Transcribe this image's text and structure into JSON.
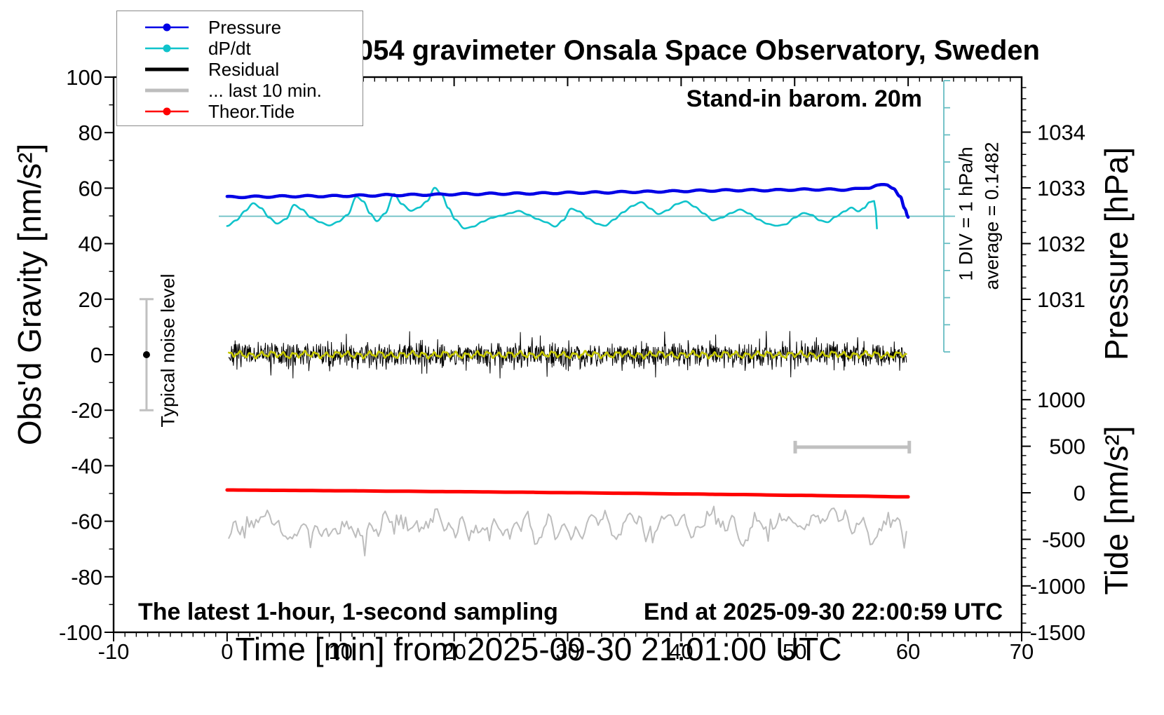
{
  "chart_data": {
    "type": "line",
    "title": "SCG_054 gravimeter Onsala Space Observatory, Sweden",
    "xlabel": "Time [min] from 2025-09-30 21:01:00 UTC",
    "ylabel_left": "Obs'd Gravity [nm/s²]",
    "ylabel_right_top": "Pressure [hPa]",
    "ylabel_right_bottom": "Tide [nm/s²]",
    "axes": {
      "x_minutes": {
        "min": -10,
        "max": 70,
        "major": 10,
        "minor": 1
      },
      "gravity_nm_s2": {
        "min": -100,
        "max": 100,
        "major": 20,
        "minor": 10
      },
      "pressure_hPa": {
        "tick_labels": [
          1031,
          1032,
          1033,
          1034
        ],
        "minor": 0.2
      },
      "tide_nm_s2": {
        "min": -1500,
        "max": 1000,
        "major": 500,
        "minor": 100
      }
    },
    "annotations": {
      "stand_in": "Stand-in barom. 20m",
      "div_note": "1 DIV = 1 hPa/h",
      "average_note": "average = 0.1482",
      "noise_note": "Typical noise level",
      "sampling_note": "The latest 1-hour, 1-second sampling",
      "end_note": "End at 2025-09-30 22:00:59 UTC"
    },
    "legend": {
      "items": [
        {
          "label": "Pressure",
          "color": "#0000e6",
          "width": 2.4,
          "marker": true
        },
        {
          "label": "dP/dt",
          "color": "#10c3cb",
          "width": 2.4,
          "marker": true
        },
        {
          "label": "Residual",
          "color": "#000000",
          "width": 5,
          "marker": false
        },
        {
          "label": "... last 10 min.",
          "color": "#bdbdbd",
          "width": 5,
          "marker": false
        },
        {
          "label": "Theor.Tide",
          "color": "#ff0000",
          "width": 2.4,
          "marker": true
        }
      ]
    },
    "series": {
      "pressure": {
        "name": "Pressure",
        "units": "hPa",
        "color": "#0000e6",
        "stroke": 4.5,
        "wiggle": {
          "period_min": 2.3,
          "amp_hPa": 0.013
        },
        "points": [
          [
            0,
            1032.835
          ],
          [
            3,
            1032.842
          ],
          [
            6,
            1032.85
          ],
          [
            9,
            1032.852
          ],
          [
            12,
            1032.862
          ],
          [
            15,
            1032.872
          ],
          [
            18,
            1032.878
          ],
          [
            21,
            1032.89
          ],
          [
            24,
            1032.895
          ],
          [
            27,
            1032.9
          ],
          [
            30,
            1032.912
          ],
          [
            33,
            1032.918
          ],
          [
            36,
            1032.928
          ],
          [
            39,
            1032.938
          ],
          [
            42,
            1032.95
          ],
          [
            45,
            1032.958
          ],
          [
            48,
            1032.958
          ],
          [
            50,
            1032.968
          ],
          [
            52,
            1032.972
          ],
          [
            54,
            1032.968
          ],
          [
            55.5,
            1032.978
          ],
          [
            56.5,
            1033.005
          ],
          [
            57.3,
            1033.045
          ],
          [
            58.1,
            1033.048
          ],
          [
            58.7,
            1033.0
          ],
          [
            59.3,
            1032.85
          ],
          [
            59.7,
            1032.62
          ],
          [
            60,
            1032.46
          ]
        ]
      },
      "dpdt": {
        "name": "dP/dt",
        "units": "hPa/h",
        "color": "#10c3cb",
        "stroke": 2.6,
        "average_hPa_per_h": 0.1482,
        "div_hPa_per_h": 1,
        "points": [
          [
            0,
            -0.36
          ],
          [
            0.8,
            -0.15
          ],
          [
            1.6,
            0.2
          ],
          [
            2.3,
            0.48
          ],
          [
            3,
            0.3
          ],
          [
            3.7,
            -0.05
          ],
          [
            4.4,
            -0.27
          ],
          [
            5.2,
            -0.1
          ],
          [
            5.9,
            0.42
          ],
          [
            6.6,
            0.25
          ],
          [
            7.4,
            -0.05
          ],
          [
            8.2,
            -0.22
          ],
          [
            9,
            -0.34
          ],
          [
            9.8,
            -0.2
          ],
          [
            10.6,
            0.05
          ],
          [
            11.4,
            0.72
          ],
          [
            12,
            0.55
          ],
          [
            12.6,
            0.1
          ],
          [
            13.2,
            -0.18
          ],
          [
            13.9,
            0.1
          ],
          [
            14.7,
            0.82
          ],
          [
            15.4,
            0.45
          ],
          [
            16.2,
            0.2
          ],
          [
            16.9,
            0.32
          ],
          [
            17.6,
            0.55
          ],
          [
            18.3,
            1.05
          ],
          [
            18.9,
            0.8
          ],
          [
            19.5,
            0.3
          ],
          [
            20.1,
            -0.12
          ],
          [
            20.9,
            -0.45
          ],
          [
            21.7,
            -0.38
          ],
          [
            22.5,
            -0.2
          ],
          [
            23.3,
            -0.06
          ],
          [
            24.1,
            0.02
          ],
          [
            25,
            0.12
          ],
          [
            25.7,
            0.2
          ],
          [
            26.5,
            0.06
          ],
          [
            27.3,
            -0.1
          ],
          [
            28.1,
            -0.22
          ],
          [
            28.9,
            -0.38
          ],
          [
            29.6,
            -0.15
          ],
          [
            30.3,
            0.28
          ],
          [
            31,
            0.18
          ],
          [
            31.8,
            -0.08
          ],
          [
            32.6,
            -0.28
          ],
          [
            33.3,
            -0.35
          ],
          [
            34.1,
            -0.12
          ],
          [
            34.9,
            0.15
          ],
          [
            35.7,
            0.38
          ],
          [
            36.5,
            0.52
          ],
          [
            37.3,
            0.28
          ],
          [
            38,
            0.08
          ],
          [
            38.8,
            0.22
          ],
          [
            39.6,
            0.45
          ],
          [
            40.4,
            0.55
          ],
          [
            41.2,
            0.35
          ],
          [
            42,
            0.1
          ],
          [
            42.8,
            -0.15
          ],
          [
            43.6,
            -0.05
          ],
          [
            44.4,
            0.12
          ],
          [
            45.2,
            0.25
          ],
          [
            46,
            0.1
          ],
          [
            46.8,
            -0.12
          ],
          [
            47.6,
            -0.28
          ],
          [
            48.4,
            -0.35
          ],
          [
            49.2,
            -0.3
          ],
          [
            50,
            -0.05
          ],
          [
            50.8,
            0.12
          ],
          [
            51.5,
            0.05
          ],
          [
            52.2,
            -0.15
          ],
          [
            52.9,
            -0.22
          ],
          [
            53.6,
            -0.02
          ],
          [
            54.4,
            0.18
          ],
          [
            55,
            0.32
          ],
          [
            55.6,
            0.18
          ],
          [
            56.1,
            0.3
          ],
          [
            56.6,
            0.52
          ],
          [
            57,
            0.56
          ],
          [
            57.15,
            0.2
          ],
          [
            57.25,
            -0.45
          ]
        ]
      },
      "residual": {
        "name": "Residual",
        "units": "nm/s²",
        "color": "#000000",
        "stroke": 1,
        "mean": 0,
        "std": 2.2,
        "spike_amp": 8,
        "samples": 1500,
        "seed": 7,
        "t_start": 0.15,
        "t_end": 59.85
      },
      "residual_smoothed": {
        "name": "Residual smoothed",
        "units": "nm/s²",
        "color": "#c6c800",
        "stroke": 2.6,
        "harmonics": [
          [
            0.95,
            0.85,
            0.4
          ],
          [
            0.38,
            0.35,
            1.2
          ],
          [
            3.1,
            0.3,
            0
          ]
        ]
      },
      "residual_last10": {
        "name": "... last 10 min.",
        "units": "nm/s² (gravity axis)",
        "color": "#bdbdbd",
        "stroke": 2,
        "center": -61,
        "scale": 9,
        "samples": 300,
        "seed": 12
      },
      "theor_tide": {
        "name": "Theor.Tide",
        "units": "nm/s² (tide axis)",
        "color": "#ff0000",
        "stroke": 5,
        "points": [
          [
            0,
            30
          ],
          [
            5,
            26
          ],
          [
            10,
            22
          ],
          [
            15,
            17
          ],
          [
            20,
            12
          ],
          [
            25,
            7
          ],
          [
            30,
            1
          ],
          [
            35,
            -5
          ],
          [
            40,
            -12
          ],
          [
            45,
            -19
          ],
          [
            50,
            -27
          ],
          [
            55,
            -35
          ],
          [
            60,
            -44
          ]
        ]
      }
    },
    "markers": {
      "noise_bar": {
        "t": -7.1,
        "lo": -20,
        "hi": 20,
        "dot": 0,
        "color": "#c0c0c0"
      },
      "scale_bar_10min": {
        "t1": 50.05,
        "t2": 60.1,
        "gravity": -33.3,
        "color": "#c0c0c0"
      },
      "dpdt_ruler": {
        "t": 63.2,
        "divs_up": 5,
        "divs_down": 5,
        "color": "#68bec3"
      },
      "dpdt_baseline": {
        "gravity_level": 50,
        "color": "#68bec3"
      }
    }
  }
}
